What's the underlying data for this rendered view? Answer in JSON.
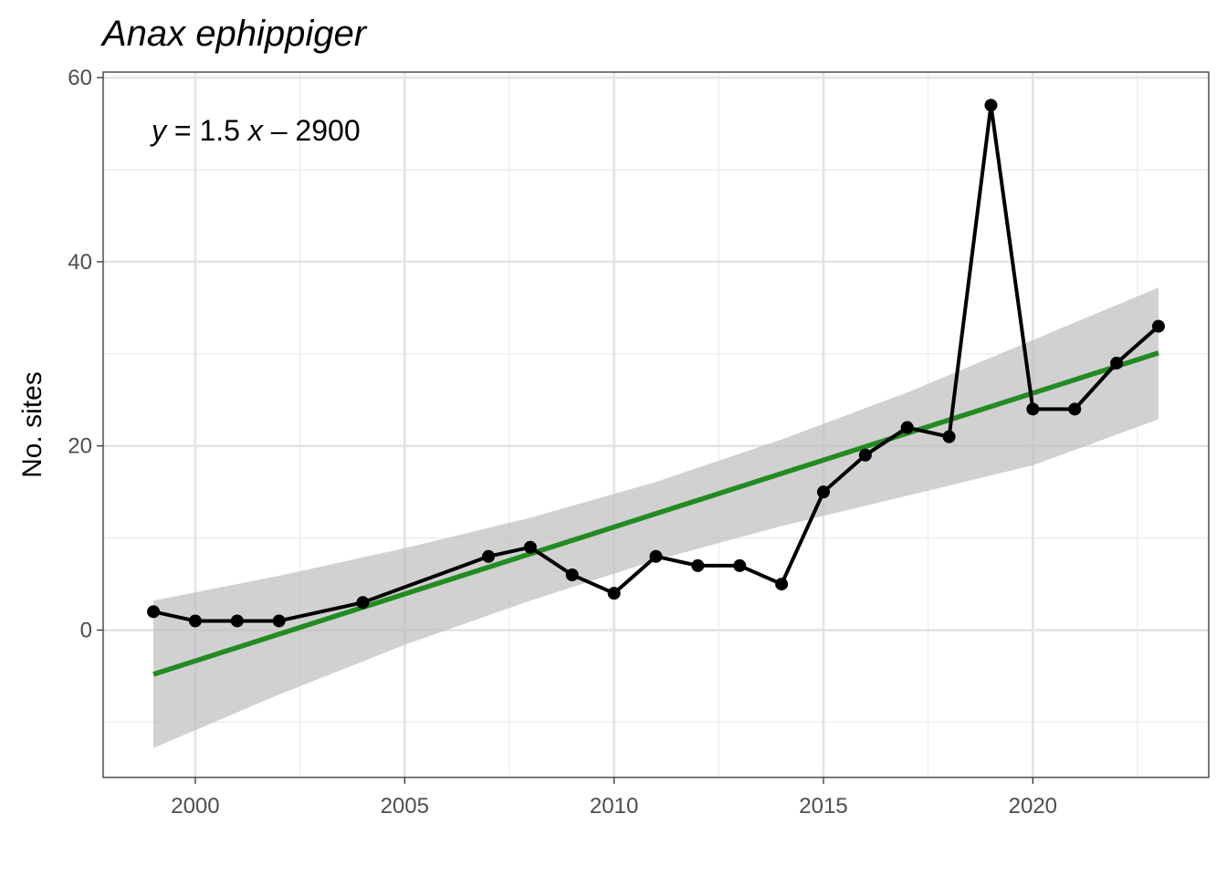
{
  "chart_data": {
    "type": "line",
    "title": "Anax ephippiger",
    "xlabel": "",
    "ylabel": "No. sites",
    "xlim": [
      1997.8,
      2024.2
    ],
    "ylim": [
      -16,
      60.6
    ],
    "x_ticks": [
      2000,
      2005,
      2010,
      2015,
      2020
    ],
    "x_tick_labels": [
      "2000",
      "2005",
      "2010",
      "2015",
      "2020"
    ],
    "y_ticks": [
      0,
      20,
      40,
      60
    ],
    "y_tick_labels": [
      "0",
      "20",
      "40",
      "60"
    ],
    "grid": true,
    "legend": "none",
    "annotation": {
      "y_var": "y",
      "eq_sign": " = 1.5 ",
      "x_var": "x",
      "rest": " – 2900"
    },
    "series": [
      {
        "type": "line+points",
        "color": "#000000",
        "x": [
          1999,
          2000,
          2001,
          2002,
          2004,
          2007,
          2008,
          2009,
          2010,
          2011,
          2012,
          2013,
          2014,
          2015,
          2016,
          2017,
          2018,
          2019,
          2020,
          2021,
          2022,
          2023
        ],
        "y": [
          2,
          1,
          1,
          1,
          3,
          8,
          9,
          6,
          4,
          8,
          7,
          7,
          5,
          15,
          19,
          22,
          21,
          57,
          24,
          24,
          29,
          33
        ]
      }
    ],
    "fit": {
      "type": "linear",
      "color": "#228B22",
      "x": [
        1999,
        2023
      ],
      "y": [
        -4.8,
        30.1
      ],
      "band_color": "#bebebe",
      "band": [
        {
          "x": 1999,
          "lo": -12.8,
          "hi": 3.2
        },
        {
          "x": 2002,
          "lo": -7.0,
          "hi": 5.9
        },
        {
          "x": 2005,
          "lo": -1.6,
          "hi": 8.9
        },
        {
          "x": 2008,
          "lo": 3.2,
          "hi": 12.2
        },
        {
          "x": 2011,
          "lo": 7.6,
          "hi": 16.1
        },
        {
          "x": 2014,
          "lo": 11.3,
          "hi": 20.7
        },
        {
          "x": 2017,
          "lo": 14.6,
          "hi": 25.8
        },
        {
          "x": 2020,
          "lo": 17.9,
          "hi": 31.5
        },
        {
          "x": 2023,
          "lo": 22.9,
          "hi": 37.2
        }
      ]
    }
  }
}
